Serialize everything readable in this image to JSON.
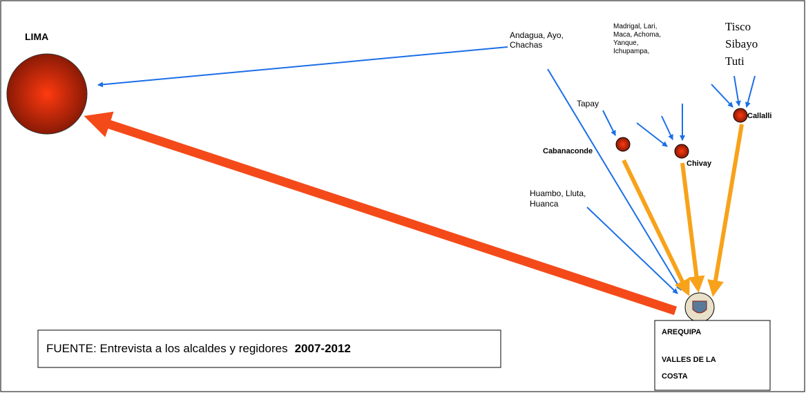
{
  "origin": {
    "label": "LIMA"
  },
  "hub": {
    "lines": [
      "AREQUIPA",
      "VALLES DE LA",
      "COSTA"
    ]
  },
  "towns": {
    "cabanaconde": "Cabanaconde",
    "chivay": "Chivay",
    "callalli": "Callalli"
  },
  "sources": {
    "andagua": [
      "Andagua, Ayo,",
      "Chachas"
    ],
    "madrigal": [
      "Madrigal, Lari,",
      "Maca, Achoma,",
      "Yanque,",
      "Ichupampa,"
    ],
    "tisco": [
      "Tisco",
      "Sibayo",
      "Tuti"
    ],
    "tapay": "Tapay",
    "huambo": [
      "Huambo, Lluta,",
      "Huanca"
    ]
  },
  "footer": {
    "text": "FUENTE: Entrevista a los alcaldes y regidores",
    "years": "2007-2012"
  }
}
